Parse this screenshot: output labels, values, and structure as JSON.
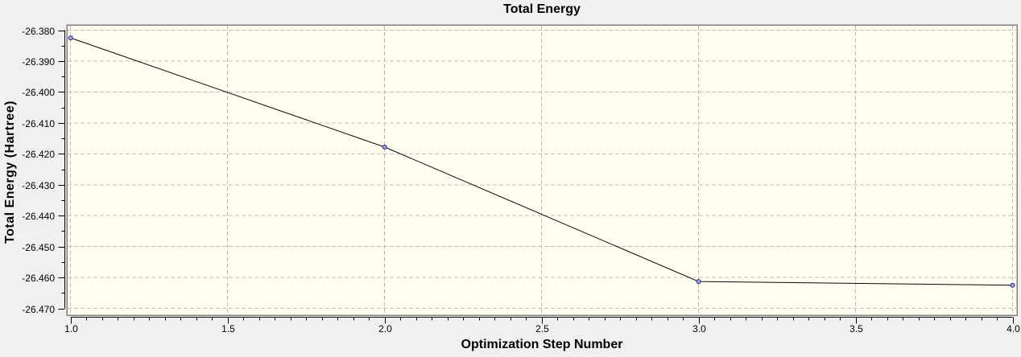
{
  "chart_data": {
    "type": "line",
    "title": "Total Energy",
    "xlabel": "Optimization Step Number",
    "ylabel": "Total Energy (Hartree)",
    "series": [
      {
        "name": "Total Energy",
        "x": [
          1.0,
          2.0,
          3.0,
          4.0
        ],
        "y": [
          -26.3825,
          -26.4178,
          -26.4613,
          -26.4625
        ]
      }
    ],
    "xlim": [
      0.988,
      4.014
    ],
    "ylim": [
      -26.4722,
      -26.3783
    ],
    "x_ticks": [
      {
        "value": 1.0,
        "label": "1.0"
      },
      {
        "value": 1.5,
        "label": "1.5"
      },
      {
        "value": 2.0,
        "label": "2.0"
      },
      {
        "value": 2.5,
        "label": "2.5"
      },
      {
        "value": 3.0,
        "label": "3.0"
      },
      {
        "value": 3.5,
        "label": "3.5"
      },
      {
        "value": 4.0,
        "label": "4.0"
      }
    ],
    "y_ticks": [
      {
        "value": -26.38,
        "label": "-26.380"
      },
      {
        "value": -26.39,
        "label": "-26.390"
      },
      {
        "value": -26.4,
        "label": "-26.400"
      },
      {
        "value": -26.41,
        "label": "-26.410"
      },
      {
        "value": -26.42,
        "label": "-26.420"
      },
      {
        "value": -26.43,
        "label": "-26.430"
      },
      {
        "value": -26.44,
        "label": "-26.440"
      },
      {
        "value": -26.45,
        "label": "-26.450"
      },
      {
        "value": -26.46,
        "label": "-26.460"
      },
      {
        "value": -26.47,
        "label": "-26.470"
      }
    ],
    "x_minor_step": 0.05,
    "y_minor_step": 0.005,
    "grid": {
      "major": true,
      "minor": false,
      "style": "dashed"
    },
    "legend": "none",
    "marker": {
      "shape": "circle",
      "size": 5
    },
    "colors": {
      "window_background": "#F0F0F0",
      "plot_background": "#FFFEF0",
      "grid": "#BDBDBD",
      "frame": "#808080",
      "axis": "#000000",
      "line": "#0A0A0A",
      "marker_fill": "#9DA6E3",
      "marker_stroke": "#26268C",
      "text": "#000000"
    }
  }
}
